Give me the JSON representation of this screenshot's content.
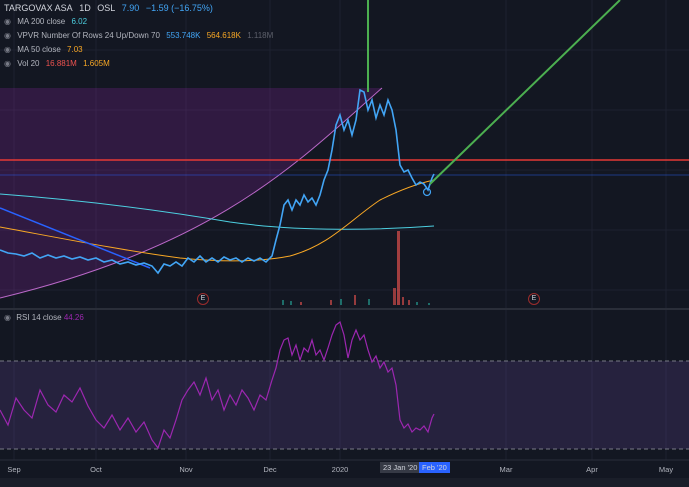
{
  "header": {
    "symbol": "TARGOVAX ASA",
    "interval": "1D",
    "exchange": "OSL",
    "price": "7.90",
    "change": "−1.59 (−16.75%)"
  },
  "indicators": [
    {
      "name": "MA 200 close",
      "values": [
        "6.02"
      ],
      "colors": [
        "#4dd0e1"
      ]
    },
    {
      "name": "VPVR Number Of Rows 24 Up/Down 70",
      "values": [
        "553.748K",
        "564.618K",
        "1.118M"
      ],
      "colors": [
        "#42a5f5",
        "#f9a825",
        "#5d606b"
      ]
    },
    {
      "name": "MA 50 close",
      "values": [
        "7.03"
      ],
      "colors": [
        "#f9a825"
      ]
    },
    {
      "name": "Vol 20",
      "values": [
        "16.881M",
        "1.605M"
      ],
      "colors": [
        "#ef5350",
        "#f9a825"
      ]
    }
  ],
  "rsi": {
    "name": "RSI 14 close",
    "value": "44.26"
  },
  "x_axis": {
    "labels": [
      "Sep",
      "Oct",
      "Nov",
      "Dec",
      "2020",
      "Mar",
      "Apr",
      "May"
    ],
    "flags": [
      "23 Jan '20",
      "Feb '20"
    ]
  },
  "earnings_marker": "E",
  "colors": {
    "price_line": "#42a5f5",
    "ma200": "#4dd0e1",
    "ma50": "#f9a825",
    "resistance": "#e53935",
    "trend_line": "#4caf50",
    "rsi_line": "#9c27b0",
    "background": "#131722"
  }
}
